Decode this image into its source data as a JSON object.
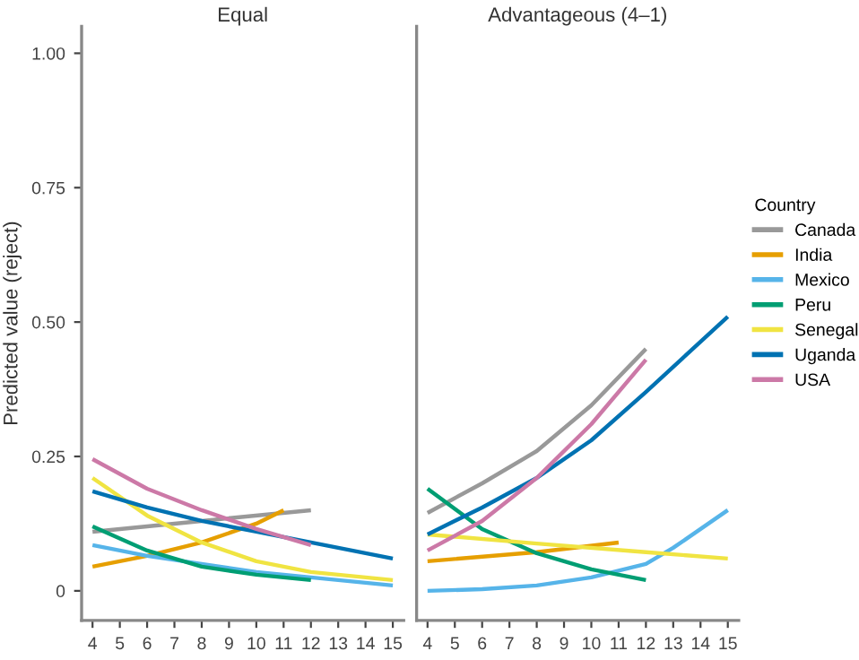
{
  "chart_data": [
    {
      "type": "line",
      "title": "Equal",
      "ylabel": "Predicted value (reject)",
      "xlim": [
        3.6,
        15.4
      ],
      "ylim": [
        -0.055,
        1.05
      ],
      "xticks": [
        4,
        5,
        6,
        7,
        8,
        9,
        10,
        11,
        12,
        13,
        14,
        15
      ],
      "yticks": [
        0,
        {
          "value": 0.25,
          "label": "0.25"
        },
        {
          "value": 0.5,
          "label": "0.50"
        },
        {
          "value": 0.75,
          "label": "0.75"
        },
        {
          "value": 1.0,
          "label": "1.00"
        }
      ],
      "grid": false,
      "marker": "none",
      "line_style": "solid",
      "series": [
        {
          "color": "#999999",
          "x": [
            4,
            8,
            12
          ],
          "values": [
            0.11,
            0.13,
            0.15
          ]
        },
        {
          "color": "#e69f00",
          "x": [
            4,
            6,
            8,
            10,
            11
          ],
          "values": [
            0.045,
            0.065,
            0.09,
            0.125,
            0.15
          ]
        },
        {
          "color": "#56b4e9",
          "x": [
            4,
            6,
            8,
            10,
            12,
            15
          ],
          "values": [
            0.085,
            0.065,
            0.05,
            0.035,
            0.025,
            0.01
          ]
        },
        {
          "color": "#009e73",
          "x": [
            4,
            6,
            8,
            10,
            12
          ],
          "values": [
            0.12,
            0.075,
            0.045,
            0.03,
            0.02
          ]
        },
        {
          "color": "#f0e442",
          "x": [
            4,
            6,
            8,
            10,
            12,
            15
          ],
          "values": [
            0.21,
            0.14,
            0.09,
            0.055,
            0.035,
            0.02
          ]
        },
        {
          "color": "#0072b2",
          "x": [
            4,
            6,
            8,
            10,
            12,
            15
          ],
          "values": [
            0.185,
            0.155,
            0.13,
            0.11,
            0.09,
            0.06
          ]
        },
        {
          "color": "#cc79a7",
          "x": [
            4,
            6,
            8,
            10,
            12
          ],
          "values": [
            0.245,
            0.19,
            0.15,
            0.115,
            0.085
          ]
        }
      ]
    },
    {
      "type": "line",
      "title": "Advantageous (4–1)",
      "legend_title": "Country",
      "xlim": [
        3.6,
        15.4
      ],
      "ylim": [
        -0.055,
        1.05
      ],
      "xticks": [
        4,
        5,
        6,
        7,
        8,
        9,
        10,
        11,
        12,
        13,
        14,
        15
      ],
      "tick_labels": "x",
      "grid": false,
      "marker": "none",
      "line_style": "solid",
      "legend": "right",
      "series": [
        {
          "name": "Canada",
          "color": "#999999",
          "x": [
            4,
            6,
            8,
            10,
            12
          ],
          "values": [
            0.145,
            0.2,
            0.26,
            0.345,
            0.45
          ]
        },
        {
          "name": "India",
          "color": "#e69f00",
          "x": [
            4,
            8,
            11
          ],
          "values": [
            0.055,
            0.072,
            0.09
          ]
        },
        {
          "name": "Mexico",
          "color": "#56b4e9",
          "x": [
            4,
            6,
            8,
            10,
            12,
            13,
            15
          ],
          "values": [
            0.0,
            0.003,
            0.01,
            0.025,
            0.05,
            0.08,
            0.15
          ]
        },
        {
          "name": "Peru",
          "color": "#009e73",
          "x": [
            4,
            6,
            8,
            10,
            12
          ],
          "values": [
            0.19,
            0.115,
            0.07,
            0.04,
            0.02
          ]
        },
        {
          "name": "Senegal",
          "color": "#f0e442",
          "x": [
            4,
            8,
            12,
            15
          ],
          "values": [
            0.105,
            0.088,
            0.072,
            0.06
          ]
        },
        {
          "name": "Uganda",
          "color": "#0072b2",
          "x": [
            4,
            6,
            8,
            10,
            12,
            15
          ],
          "values": [
            0.105,
            0.155,
            0.21,
            0.28,
            0.37,
            0.51
          ]
        },
        {
          "name": "USA",
          "color": "#cc79a7",
          "x": [
            4,
            6,
            8,
            10,
            12
          ],
          "values": [
            0.075,
            0.13,
            0.21,
            0.31,
            0.43
          ]
        }
      ]
    }
  ]
}
